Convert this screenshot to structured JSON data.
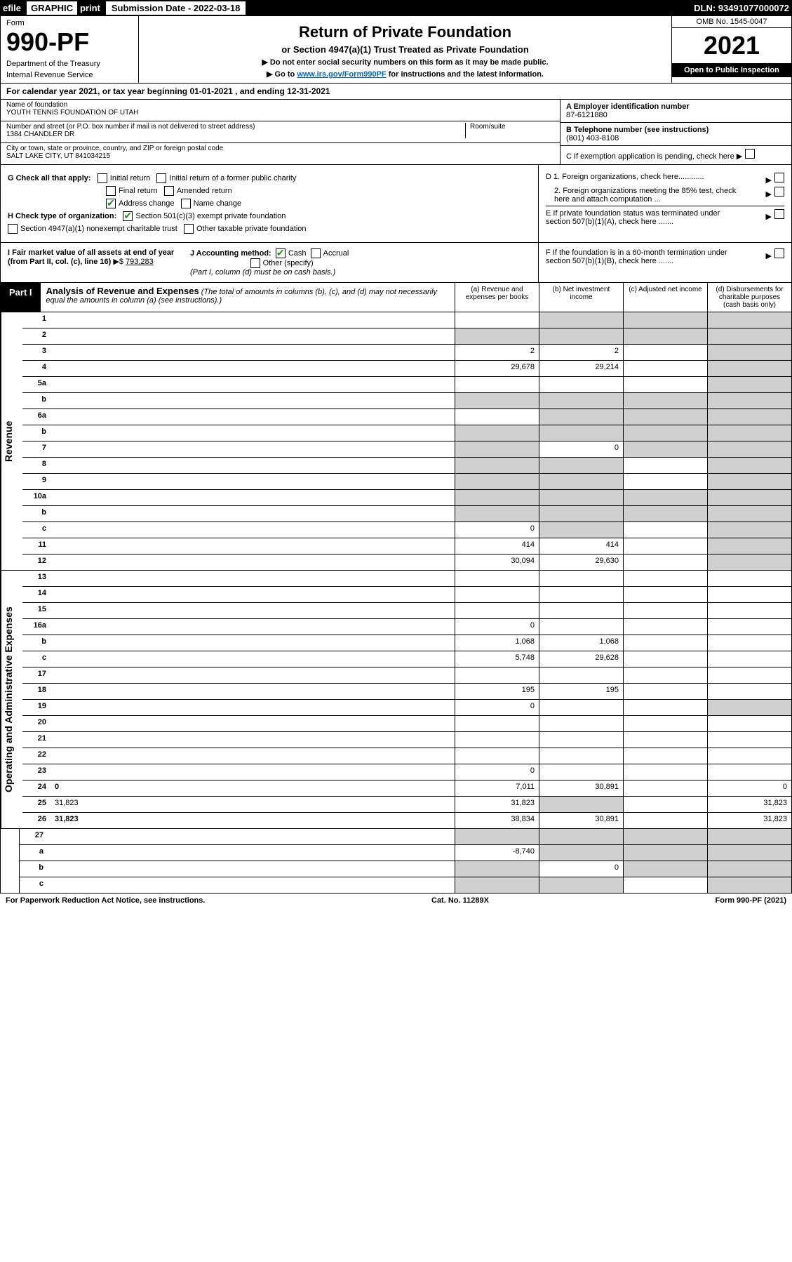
{
  "top": {
    "efile": "efile",
    "graphic": "GRAPHIC",
    "print": "print",
    "submission": "Submission Date - 2022-03-18",
    "dln": "DLN: 93491077000072"
  },
  "header": {
    "form_label": "Form",
    "form_num": "990-PF",
    "dept": "Department of the Treasury",
    "irs": "Internal Revenue Service",
    "title": "Return of Private Foundation",
    "subtitle": "or Section 4947(a)(1) Trust Treated as Private Foundation",
    "note1": "▶ Do not enter social security numbers on this form as it may be made public.",
    "note2_pre": "▶ Go to ",
    "note2_link": "www.irs.gov/Form990PF",
    "note2_post": " for instructions and the latest information.",
    "omb": "OMB No. 1545-0047",
    "year": "2021",
    "open": "Open to Public Inspection"
  },
  "calendar": "For calendar year 2021, or tax year beginning 01-01-2021             , and ending 12-31-2021",
  "info": {
    "name_label": "Name of foundation",
    "name": "YOUTH TENNIS FOUNDATION OF UTAH",
    "addr_label": "Number and street (or P.O. box number if mail is not delivered to street address)",
    "addr": "1384 CHANDLER DR",
    "room_label": "Room/suite",
    "city_label": "City or town, state or province, country, and ZIP or foreign postal code",
    "city": "SALT LAKE CITY, UT  841034215",
    "ein_label": "A Employer identification number",
    "ein": "87-6121880",
    "tel_label": "B Telephone number (see instructions)",
    "tel": "(801) 403-8108",
    "c": "C If exemption application is pending, check here",
    "d1": "D 1. Foreign organizations, check here............",
    "d2": "2. Foreign organizations meeting the 85% test, check here and attach computation ...",
    "e": "E  If private foundation status was terminated under section 507(b)(1)(A), check here .......",
    "f": "F  If the foundation is in a 60-month termination under section 507(b)(1)(B), check here .......",
    "g_label": "G Check all that apply:",
    "g_initial": "Initial return",
    "g_initial_former": "Initial return of a former public charity",
    "g_final": "Final return",
    "g_amended": "Amended return",
    "g_addr": "Address change",
    "g_name": "Name change",
    "h_label": "H Check type of organization:",
    "h_501c3": "Section 501(c)(3) exempt private foundation",
    "h_4947": "Section 4947(a)(1) nonexempt charitable trust",
    "h_other": "Other taxable private foundation",
    "i_label": "I Fair market value of all assets at end of year (from Part II, col. (c), line 16)",
    "i_val": "793,283",
    "j_label": "J Accounting method:",
    "j_cash": "Cash",
    "j_accrual": "Accrual",
    "j_other": "Other (specify)",
    "j_note": "(Part I, column (d) must be on cash basis.)"
  },
  "part1": {
    "label": "Part I",
    "title": "Analysis of Revenue and Expenses",
    "subtitle": "(The total of amounts in columns (b), (c), and (d) may not necessarily equal the amounts in column (a) (see instructions).)",
    "col_a": "(a) Revenue and expenses per books",
    "col_b": "(b) Net investment income",
    "col_c": "(c) Adjusted net income",
    "col_d": "(d) Disbursements for charitable purposes (cash basis only)"
  },
  "sections": {
    "revenue": "Revenue",
    "opexp": "Operating and Administrative Expenses"
  },
  "rows": [
    {
      "n": "1",
      "d": "",
      "a": "",
      "b": "",
      "c": "",
      "sb": true,
      "sc": true,
      "sd": true
    },
    {
      "n": "2",
      "d": "",
      "a": "",
      "b": "",
      "c": "",
      "sa": true,
      "sb": true,
      "sc": true,
      "sd": true
    },
    {
      "n": "3",
      "d": "",
      "a": "2",
      "b": "2",
      "c": "",
      "sd": true
    },
    {
      "n": "4",
      "d": "",
      "a": "29,678",
      "b": "29,214",
      "c": "",
      "sd": true
    },
    {
      "n": "5a",
      "d": "",
      "a": "",
      "b": "",
      "c": "",
      "sd": true
    },
    {
      "n": "b",
      "d": "",
      "a": "",
      "b": "",
      "c": "",
      "sa": true,
      "sb": true,
      "sc": true,
      "sd": true
    },
    {
      "n": "6a",
      "d": "",
      "a": "",
      "b": "",
      "c": "",
      "sb": true,
      "sc": true,
      "sd": true
    },
    {
      "n": "b",
      "d": "",
      "a": "",
      "b": "",
      "c": "",
      "sa": true,
      "sb": true,
      "sc": true,
      "sd": true
    },
    {
      "n": "7",
      "d": "",
      "a": "",
      "b": "0",
      "c": "",
      "sa": true,
      "sc": true,
      "sd": true
    },
    {
      "n": "8",
      "d": "",
      "a": "",
      "b": "",
      "c": "",
      "sa": true,
      "sb": true,
      "sd": true
    },
    {
      "n": "9",
      "d": "",
      "a": "",
      "b": "",
      "c": "",
      "sa": true,
      "sb": true,
      "sd": true
    },
    {
      "n": "10a",
      "d": "",
      "a": "",
      "b": "",
      "c": "",
      "sa": true,
      "sb": true,
      "sc": true,
      "sd": true
    },
    {
      "n": "b",
      "d": "",
      "a": "",
      "b": "",
      "c": "",
      "sa": true,
      "sb": true,
      "sc": true,
      "sd": true
    },
    {
      "n": "c",
      "d": "",
      "a": "0",
      "b": "",
      "c": "",
      "sb": true,
      "sd": true
    },
    {
      "n": "11",
      "d": "",
      "a": "414",
      "b": "414",
      "c": "",
      "sd": true
    },
    {
      "n": "12",
      "d": "",
      "a": "30,094",
      "b": "29,630",
      "c": "",
      "sd": true,
      "bold": true
    }
  ],
  "exp_rows": [
    {
      "n": "13",
      "d": "",
      "a": "",
      "b": "",
      "c": ""
    },
    {
      "n": "14",
      "d": "",
      "a": "",
      "b": "",
      "c": ""
    },
    {
      "n": "15",
      "d": "",
      "a": "",
      "b": "",
      "c": ""
    },
    {
      "n": "16a",
      "d": "",
      "a": "0",
      "b": "",
      "c": ""
    },
    {
      "n": "b",
      "d": "",
      "a": "1,068",
      "b": "1,068",
      "c": ""
    },
    {
      "n": "c",
      "d": "",
      "a": "5,748",
      "b": "29,628",
      "c": ""
    },
    {
      "n": "17",
      "d": "",
      "a": "",
      "b": "",
      "c": ""
    },
    {
      "n": "18",
      "d": "",
      "a": "195",
      "b": "195",
      "c": ""
    },
    {
      "n": "19",
      "d": "",
      "a": "0",
      "b": "",
      "c": "",
      "sd": true
    },
    {
      "n": "20",
      "d": "",
      "a": "",
      "b": "",
      "c": ""
    },
    {
      "n": "21",
      "d": "",
      "a": "",
      "b": "",
      "c": ""
    },
    {
      "n": "22",
      "d": "",
      "a": "",
      "b": "",
      "c": ""
    },
    {
      "n": "23",
      "d": "",
      "a": "0",
      "b": "",
      "c": ""
    },
    {
      "n": "24",
      "d": "0",
      "a": "7,011",
      "b": "30,891",
      "c": "",
      "bold": true
    },
    {
      "n": "25",
      "d": "31,823",
      "a": "31,823",
      "b": "",
      "c": "",
      "sb": true
    },
    {
      "n": "26",
      "d": "31,823",
      "a": "38,834",
      "b": "30,891",
      "c": "",
      "bold": true
    }
  ],
  "final_rows": [
    {
      "n": "27",
      "d": "",
      "a": "",
      "b": "",
      "c": "",
      "sa": true,
      "sb": true,
      "sc": true,
      "sd": true
    },
    {
      "n": "a",
      "d": "",
      "a": "-8,740",
      "b": "",
      "c": "",
      "sb": true,
      "sc": true,
      "sd": true,
      "bold": true
    },
    {
      "n": "b",
      "d": "",
      "a": "",
      "b": "0",
      "c": "",
      "sa": true,
      "sc": true,
      "sd": true,
      "bold": true
    },
    {
      "n": "c",
      "d": "",
      "a": "",
      "b": "",
      "c": "",
      "sa": true,
      "sb": true,
      "sd": true,
      "bold": true
    }
  ],
  "footer": {
    "left": "For Paperwork Reduction Act Notice, see instructions.",
    "center": "Cat. No. 11289X",
    "right": "Form 990-PF (2021)"
  }
}
